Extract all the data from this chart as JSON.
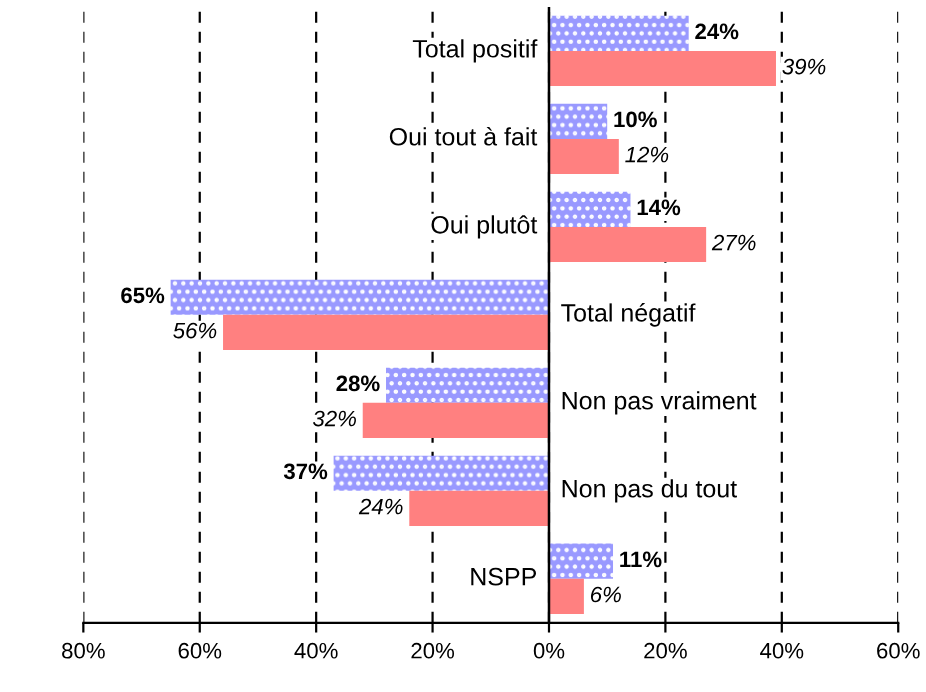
{
  "chart_data": {
    "type": "bar",
    "orientation": "horizontal",
    "categories": [
      "Total positif",
      "Oui tout à fait",
      "Oui plutôt",
      "Total négatif",
      "Non pas vraiment",
      "Non pas du tout",
      "NSPP"
    ],
    "series": [
      {
        "color": "#9999ff",
        "values": [
          24,
          10,
          14,
          65,
          28,
          37,
          11
        ],
        "base": [
          0,
          0,
          0,
          -65,
          -28,
          -37,
          0
        ],
        "value_labels": [
          "24%",
          "10%",
          "14%",
          "65%",
          "28%",
          "37%",
          "11%"
        ]
      },
      {
        "color": "#ff8080",
        "values": [
          39,
          12,
          27,
          56,
          32,
          24,
          6
        ],
        "base": [
          0,
          0,
          0,
          -56,
          -32,
          -24,
          0
        ],
        "value_labels": [
          "39%",
          "12%",
          "27%",
          "56%",
          "32%",
          "24%",
          "6%"
        ]
      }
    ],
    "xlim": [
      -80,
      60
    ],
    "xticks": [
      {
        "value": -80,
        "label": "80%"
      },
      {
        "value": -60,
        "label": "60%"
      },
      {
        "value": -40,
        "label": "40%"
      },
      {
        "value": -20,
        "label": "20%"
      },
      {
        "value": 0,
        "label": "0%"
      },
      {
        "value": 20,
        "label": "20%"
      },
      {
        "value": 40,
        "label": "40%"
      },
      {
        "value": 60,
        "label": "60%"
      }
    ],
    "grid": "x",
    "tick_labels": "x",
    "legend": false
  }
}
